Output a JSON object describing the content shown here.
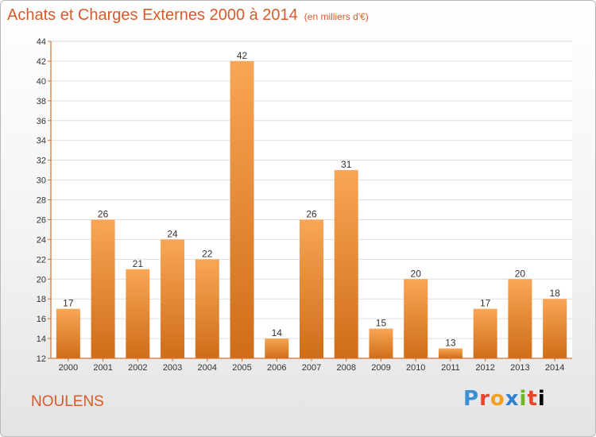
{
  "header": {
    "title": "Achats et Charges Externes 2000 à 2014",
    "unit": "(en milliers d'€)"
  },
  "footer": {
    "commune": "NOULENS",
    "brand_letters": [
      "P",
      "r",
      "o",
      "x",
      "i",
      "t",
      "i"
    ]
  },
  "colors": {
    "title": "#d85a28",
    "bar_top": "#f8a656",
    "bar_bottom": "#cf6d18",
    "axis": "#d87030",
    "grid": "#dddddd"
  },
  "chart_data": {
    "type": "bar",
    "title": "Achats et Charges Externes 2000 à 2014",
    "subtitle": "(en milliers d'€)",
    "xlabel": "",
    "ylabel": "",
    "categories": [
      "2000",
      "2001",
      "2002",
      "2003",
      "2004",
      "2005",
      "2006",
      "2007",
      "2008",
      "2009",
      "2010",
      "2011",
      "2012",
      "2013",
      "2014"
    ],
    "values": [
      17,
      26,
      21,
      24,
      22,
      42,
      14,
      26,
      31,
      15,
      20,
      13,
      17,
      20,
      18
    ],
    "ylim": [
      12,
      44
    ],
    "yticks": [
      12,
      14,
      16,
      18,
      20,
      22,
      24,
      26,
      28,
      30,
      32,
      34,
      36,
      38,
      40,
      42,
      44
    ],
    "grid": true,
    "legend": "none"
  }
}
